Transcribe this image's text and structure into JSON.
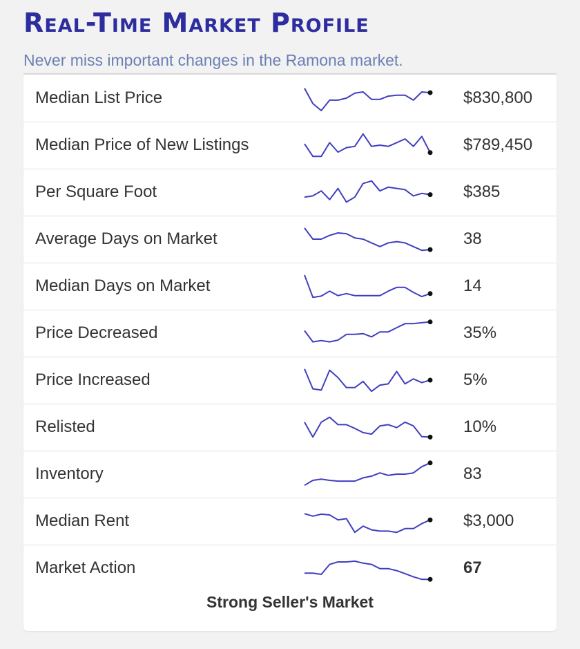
{
  "header": {
    "title": "Real-Time Market Profile",
    "subtitle": "Never miss important changes in the Ramona market."
  },
  "colors": {
    "title": "#2d2d9f",
    "subtitle": "#6a7fb4",
    "sparkline": "#3f3fbf",
    "end_dot": "#111111"
  },
  "metrics": [
    {
      "label": "Median List Price",
      "value": "$830,800",
      "trend": [
        0.9,
        0.28,
        0.0,
        0.42,
        0.42,
        0.5,
        0.7,
        0.75,
        0.45,
        0.45,
        0.58,
        0.62,
        0.62,
        0.42,
        0.75,
        0.72
      ]
    },
    {
      "label": "Median Price of New Listings",
      "value": "$789,450",
      "trend": [
        0.55,
        0.05,
        0.05,
        0.6,
        0.22,
        0.4,
        0.45,
        0.95,
        0.45,
        0.5,
        0.45,
        0.6,
        0.75,
        0.45,
        0.85,
        0.2
      ]
    },
    {
      "label": "Per Square Foot",
      "value": "$385",
      "trend": [
        0.3,
        0.35,
        0.55,
        0.2,
        0.65,
        0.1,
        0.3,
        0.85,
        0.95,
        0.55,
        0.7,
        0.65,
        0.6,
        0.35,
        0.45,
        0.4
      ]
    },
    {
      "label": "Average Days on Market",
      "value": "38",
      "trend": [
        0.95,
        0.5,
        0.5,
        0.65,
        0.75,
        0.72,
        0.55,
        0.5,
        0.35,
        0.2,
        0.35,
        0.4,
        0.35,
        0.2,
        0.05,
        0.08
      ]
    },
    {
      "label": "Median Days on Market",
      "value": "14",
      "trend": [
        0.95,
        0.05,
        0.1,
        0.3,
        0.12,
        0.2,
        0.12,
        0.12,
        0.12,
        0.12,
        0.3,
        0.45,
        0.45,
        0.25,
        0.08,
        0.2
      ]
    },
    {
      "label": "Price Decreased",
      "value": "35%",
      "trend": [
        0.6,
        0.15,
        0.2,
        0.15,
        0.22,
        0.45,
        0.45,
        0.48,
        0.35,
        0.55,
        0.55,
        0.72,
        0.88,
        0.88,
        0.92,
        0.95
      ]
    },
    {
      "label": "Price Increased",
      "value": "5%",
      "trend": [
        0.95,
        0.15,
        0.1,
        0.9,
        0.6,
        0.2,
        0.2,
        0.45,
        0.05,
        0.3,
        0.35,
        0.85,
        0.35,
        0.55,
        0.4,
        0.5
      ]
    },
    {
      "label": "Relisted",
      "value": "10%",
      "trend": [
        0.7,
        0.1,
        0.7,
        0.9,
        0.6,
        0.6,
        0.45,
        0.28,
        0.22,
        0.55,
        0.6,
        0.48,
        0.7,
        0.55,
        0.12,
        0.1
      ]
    },
    {
      "label": "Inventory",
      "value": "83",
      "trend": [
        0.05,
        0.25,
        0.3,
        0.25,
        0.22,
        0.22,
        0.22,
        0.35,
        0.42,
        0.55,
        0.45,
        0.5,
        0.5,
        0.55,
        0.8,
        0.95
      ]
    },
    {
      "label": "Median Rent",
      "value": "$3,000",
      "trend": [
        0.8,
        0.7,
        0.78,
        0.75,
        0.55,
        0.6,
        0.05,
        0.3,
        0.15,
        0.1,
        0.1,
        0.05,
        0.2,
        0.2,
        0.4,
        0.55
      ]
    },
    {
      "label": "Market Action",
      "value": "67",
      "trend": [
        0.3,
        0.3,
        0.25,
        0.65,
        0.75,
        0.75,
        0.78,
        0.7,
        0.65,
        0.48,
        0.48,
        0.4,
        0.28,
        0.15,
        0.05,
        0.05
      ],
      "bold": true
    }
  ],
  "status": {
    "text": "Strong Seller's Market"
  }
}
